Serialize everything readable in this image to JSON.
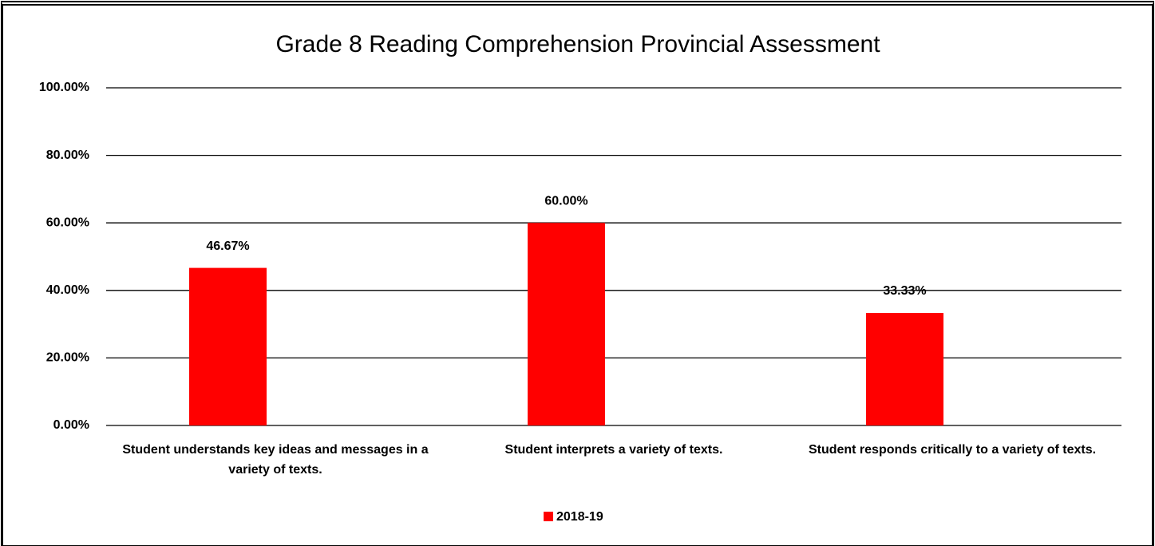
{
  "chart_data": {
    "type": "bar",
    "title": "Grade 8 Reading Comprehension Provincial Assessment",
    "categories": [
      "Student understands key ideas and messages in a variety of texts.",
      "Student interprets a variety of texts.",
      "Student responds critically to a variety of texts."
    ],
    "series": [
      {
        "name": "2018-19",
        "color": "#ff0000",
        "values": [
          46.67,
          60.0,
          33.33
        ],
        "value_labels": [
          "46.67%",
          "60.00%",
          "33.33%"
        ]
      }
    ],
    "ylim": [
      0,
      100
    ],
    "yticks": [
      {
        "value": 0,
        "label": "0.00%"
      },
      {
        "value": 20,
        "label": "20.00%"
      },
      {
        "value": 40,
        "label": "40.00%"
      },
      {
        "value": 60,
        "label": "60.00%"
      },
      {
        "value": 80,
        "label": "80.00%"
      },
      {
        "value": 100,
        "label": "100.00%"
      }
    ],
    "grid": true,
    "legend": "bottom"
  }
}
